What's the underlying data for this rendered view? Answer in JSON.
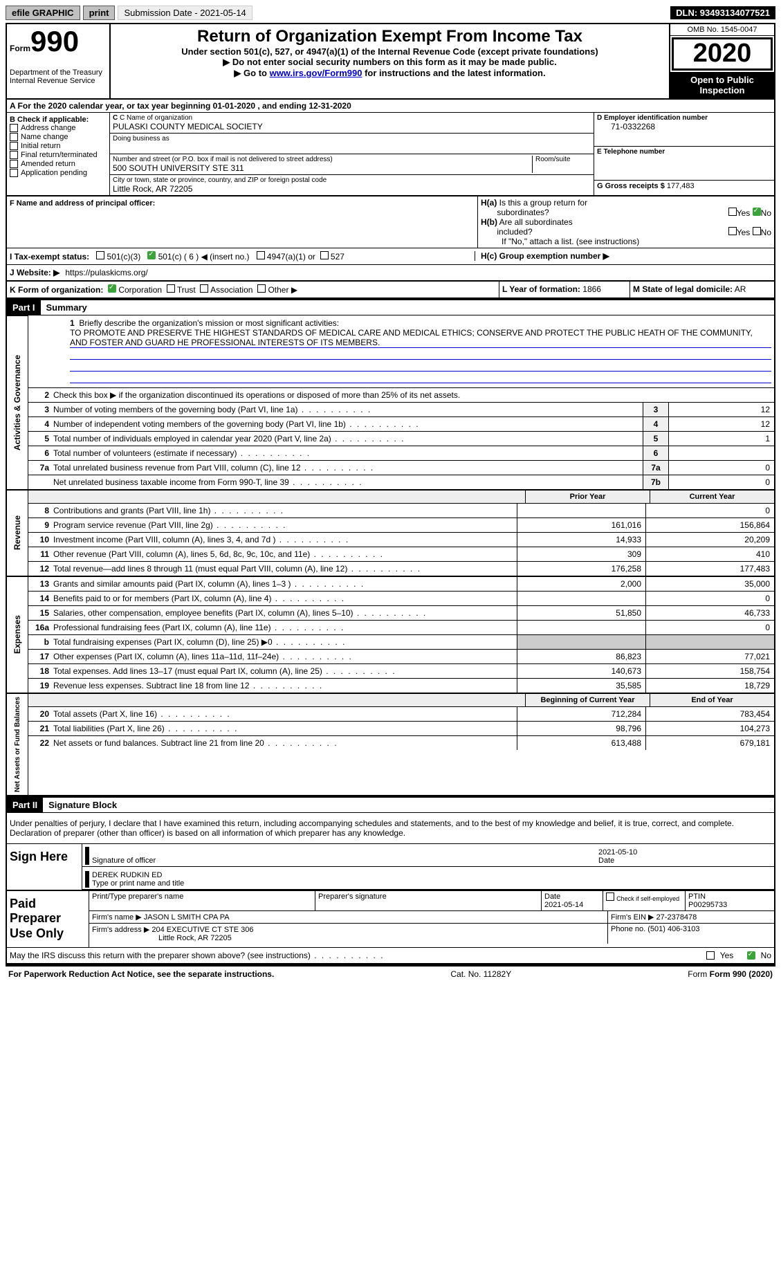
{
  "topbar": {
    "efile_label": "efile GRAPHIC",
    "print_label": "print",
    "submission_label": "Submission Date - 2021-05-14",
    "dln_label": "DLN: 93493134077521"
  },
  "header": {
    "form_word": "Form",
    "form_num": "990",
    "dept": "Department of the Treasury",
    "irs": "Internal Revenue Service",
    "title": "Return of Organization Exempt From Income Tax",
    "sub1": "Under section 501(c), 527, or 4947(a)(1) of the Internal Revenue Code (except private foundations)",
    "sub2": "▶ Do not enter social security numbers on this form as it may be made public.",
    "sub3_pre": "▶ Go to ",
    "sub3_link": "www.irs.gov/Form990",
    "sub3_post": " for instructions and the latest information.",
    "omb": "OMB No. 1545-0047",
    "year": "2020",
    "otpi": "Open to Public Inspection"
  },
  "row_a": "A For the 2020 calendar year, or tax year beginning 01-01-2020   , and ending 12-31-2020",
  "block_b": {
    "header": "B Check if applicable:",
    "items": [
      "Address change",
      "Name change",
      "Initial return",
      "Final return/terminated",
      "Amended return",
      "Application pending"
    ]
  },
  "block_c": {
    "name_label": "C Name of organization",
    "name_value": "PULASKI COUNTY MEDICAL SOCIETY",
    "dba_label": "Doing business as",
    "addr_label": "Number and street (or P.O. box if mail is not delivered to street address)",
    "room_label": "Room/suite",
    "addr_value": "500 SOUTH UNIVERSITY STE 311",
    "city_label": "City or town, state or province, country, and ZIP or foreign postal code",
    "city_value": "Little Rock, AR  72205"
  },
  "block_d": {
    "label": "D Employer identification number",
    "value": "71-0332268"
  },
  "block_e": {
    "label": "E Telephone number",
    "value": ""
  },
  "block_g": {
    "label": "G Gross receipts $",
    "value": "177,483"
  },
  "block_f": {
    "label": "F Name and address of principal officer:"
  },
  "block_h": {
    "a_label": "H(a)  Is this a group return for subordinates?",
    "b_label": "H(b)  Are all subordinates included?",
    "no_note": "If \"No,\" attach a list. (see instructions)",
    "c_label": "H(c)  Group exemption number ▶",
    "yes": "Yes",
    "no": "No"
  },
  "block_i": {
    "label": "I   Tax-exempt status:",
    "o1": "501(c)(3)",
    "o2": "501(c) ( 6 ) ◀ (insert no.)",
    "o3": "4947(a)(1) or",
    "o4": "527"
  },
  "block_j": {
    "label": "J   Website: ▶",
    "value": "https://pulaskicms.org/"
  },
  "block_k": {
    "label": "K Form of organization:",
    "o1": "Corporation",
    "o2": "Trust",
    "o3": "Association",
    "o4": "Other ▶"
  },
  "block_l": {
    "label": "L Year of formation:",
    "value": "1866"
  },
  "block_m": {
    "label": "M State of legal domicile:",
    "value": "AR"
  },
  "part1": {
    "tag": "Part I",
    "title": "Summary",
    "q1": "Briefly describe the organization's mission or most significant activities:",
    "mission": "TO PROMOTE AND PRESERVE THE HIGHEST STANDARDS OF MEDICAL CARE AND MEDICAL ETHICS; CONSERVE AND PROTECT THE PUBLIC HEATH OF THE COMMUNITY, AND FOSTER AND GUARD HE PROFESSIONAL INTERESTS OF ITS MEMBERS.",
    "q2": "Check this box ▶       if the organization discontinued its operations or disposed of more than 25% of its net assets.",
    "vert_gov": "Activities & Governance",
    "vert_rev": "Revenue",
    "vert_exp": "Expenses",
    "vert_net": "Net Assets or Fund Balances",
    "col_prior": "Prior Year",
    "col_curr": "Current Year",
    "col_begin": "Beginning of Current Year",
    "col_end": "End of Year",
    "lines_gov": [
      {
        "n": "3",
        "t": "Number of voting members of the governing body (Part VI, line 1a)",
        "k": "3",
        "v": "12"
      },
      {
        "n": "4",
        "t": "Number of independent voting members of the governing body (Part VI, line 1b)",
        "k": "4",
        "v": "12"
      },
      {
        "n": "5",
        "t": "Total number of individuals employed in calendar year 2020 (Part V, line 2a)",
        "k": "5",
        "v": "1"
      },
      {
        "n": "6",
        "t": "Total number of volunteers (estimate if necessary)",
        "k": "6",
        "v": ""
      },
      {
        "n": "7a",
        "t": "Total unrelated business revenue from Part VIII, column (C), line 12",
        "k": "7a",
        "v": "0"
      },
      {
        "n": "",
        "t": "Net unrelated business taxable income from Form 990-T, line 39",
        "k": "7b",
        "v": "0"
      }
    ],
    "lines_rev": [
      {
        "n": "8",
        "t": "Contributions and grants (Part VIII, line 1h)",
        "p": "",
        "c": "0"
      },
      {
        "n": "9",
        "t": "Program service revenue (Part VIII, line 2g)",
        "p": "161,016",
        "c": "156,864"
      },
      {
        "n": "10",
        "t": "Investment income (Part VIII, column (A), lines 3, 4, and 7d )",
        "p": "14,933",
        "c": "20,209"
      },
      {
        "n": "11",
        "t": "Other revenue (Part VIII, column (A), lines 5, 6d, 8c, 9c, 10c, and 11e)",
        "p": "309",
        "c": "410"
      },
      {
        "n": "12",
        "t": "Total revenue—add lines 8 through 11 (must equal Part VIII, column (A), line 12)",
        "p": "176,258",
        "c": "177,483"
      }
    ],
    "lines_exp": [
      {
        "n": "13",
        "t": "Grants and similar amounts paid (Part IX, column (A), lines 1–3 )",
        "p": "2,000",
        "c": "35,000"
      },
      {
        "n": "14",
        "t": "Benefits paid to or for members (Part IX, column (A), line 4)",
        "p": "",
        "c": "0"
      },
      {
        "n": "15",
        "t": "Salaries, other compensation, employee benefits (Part IX, column (A), lines 5–10)",
        "p": "51,850",
        "c": "46,733"
      },
      {
        "n": "16a",
        "t": "Professional fundraising fees (Part IX, column (A), line 11e)",
        "p": "",
        "c": "0"
      },
      {
        "n": "b",
        "t": "Total fundraising expenses (Part IX, column (D), line 25) ▶0",
        "p": "SHADE",
        "c": "SHADE"
      },
      {
        "n": "17",
        "t": "Other expenses (Part IX, column (A), lines 11a–11d, 11f–24e)",
        "p": "86,823",
        "c": "77,021"
      },
      {
        "n": "18",
        "t": "Total expenses. Add lines 13–17 (must equal Part IX, column (A), line 25)",
        "p": "140,673",
        "c": "158,754"
      },
      {
        "n": "19",
        "t": "Revenue less expenses. Subtract line 18 from line 12",
        "p": "35,585",
        "c": "18,729"
      }
    ],
    "lines_net": [
      {
        "n": "20",
        "t": "Total assets (Part X, line 16)",
        "p": "712,284",
        "c": "783,454"
      },
      {
        "n": "21",
        "t": "Total liabilities (Part X, line 26)",
        "p": "98,796",
        "c": "104,273"
      },
      {
        "n": "22",
        "t": "Net assets or fund balances. Subtract line 21 from line 20",
        "p": "613,488",
        "c": "679,181"
      }
    ]
  },
  "part2": {
    "tag": "Part II",
    "title": "Signature Block",
    "jurat": "Under penalties of perjury, I declare that I have examined this return, including accompanying schedules and statements, and to the best of my knowledge and belief, it is true, correct, and complete. Declaration of preparer (other than officer) is based on all information of which preparer has any knowledge.",
    "sign_here": "Sign Here",
    "sig_officer": "Signature of officer",
    "sig_date_label": "Date",
    "sig_date": "2021-05-10",
    "typed_name": "DEREK RUDKIN  ED",
    "typed_label": "Type or print name and title",
    "paid": "Paid Preparer Use Only",
    "pt_name_label": "Print/Type preparer's name",
    "pt_sig_label": "Preparer's signature",
    "pt_date_label": "Date",
    "pt_date": "2021-05-14",
    "pt_self_label": "Check      if self-employed",
    "ptin_label": "PTIN",
    "ptin": "P00295733",
    "firm_name_label": "Firm's name    ▶",
    "firm_name": "JASON L SMITH CPA PA",
    "firm_ein_label": "Firm's EIN ▶",
    "firm_ein": "27-2378478",
    "firm_addr_label": "Firm's address ▶",
    "firm_addr1": "204 EXECUTIVE CT STE 306",
    "firm_addr2": "Little Rock, AR  72205",
    "phone_label": "Phone no.",
    "phone": "(501) 406-3103",
    "may_irs": "May the IRS discuss this return with the preparer shown above? (see instructions)",
    "yes": "Yes",
    "no": "No"
  },
  "footer": {
    "pra": "For Paperwork Reduction Act Notice, see the separate instructions.",
    "cat": "Cat. No. 11282Y",
    "form": "Form 990 (2020)"
  }
}
